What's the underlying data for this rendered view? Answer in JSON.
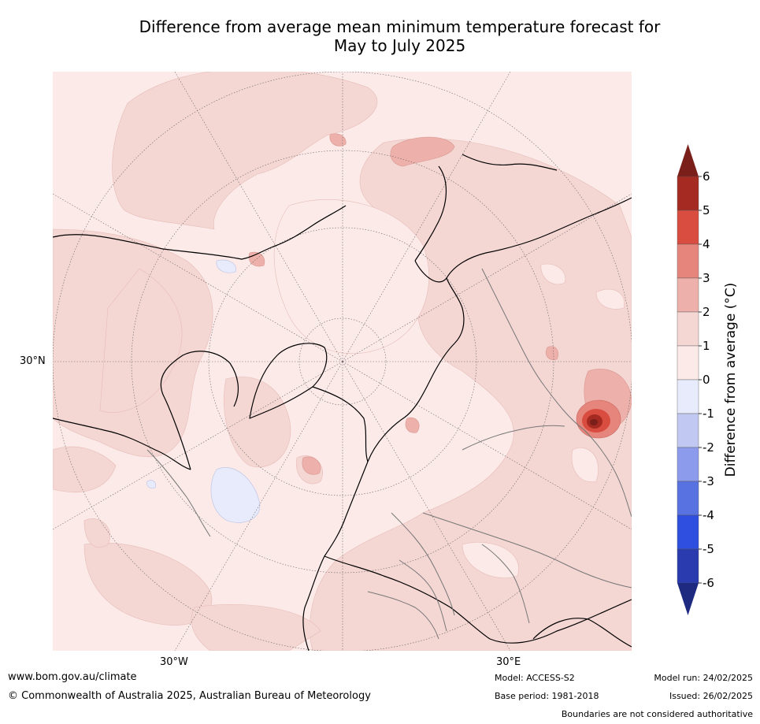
{
  "title": {
    "line1": "Difference from average mean minimum temperature forecast for",
    "line2": "May to July 2025"
  },
  "axes": {
    "lat_label": "30°N",
    "lon_west_label": "30°W",
    "lon_east_label": "30°E"
  },
  "colorbar": {
    "title": "Difference from average (°C)",
    "ticks": [
      "6",
      "5",
      "4",
      "3",
      "2",
      "1",
      "0",
      "-1",
      "-2",
      "-3",
      "-4",
      "-5",
      "-6"
    ],
    "colors": {
      "over": "#7a1f1a",
      "5_6": "#a52a22",
      "4_5": "#d94c40",
      "3_4": "#e5857c",
      "2_3": "#edb0aa",
      "1_2": "#f4d6d3",
      "0_1": "#fbeae8",
      "m1_0": "#e7ebfb",
      "m2_m1": "#c1c8f2",
      "m3_m2": "#8c9bec",
      "m4_m3": "#5872e1",
      "m5_m4": "#2f4fe0",
      "m6_m5": "#2a3bb0",
      "under": "#1e2a80"
    }
  },
  "footer": {
    "url": "www.bom.gov.au/climate",
    "copyright": "© Commonwealth of Australia 2025, Australian Bureau of Meteorology",
    "model": "Model: ACCESS-S2",
    "base_period": "Base period: 1981-2018",
    "model_run": "Model run: 24/02/2025",
    "issued": "Issued: 26/02/2025",
    "boundaries": "Boundaries are not considered authoritative"
  }
}
